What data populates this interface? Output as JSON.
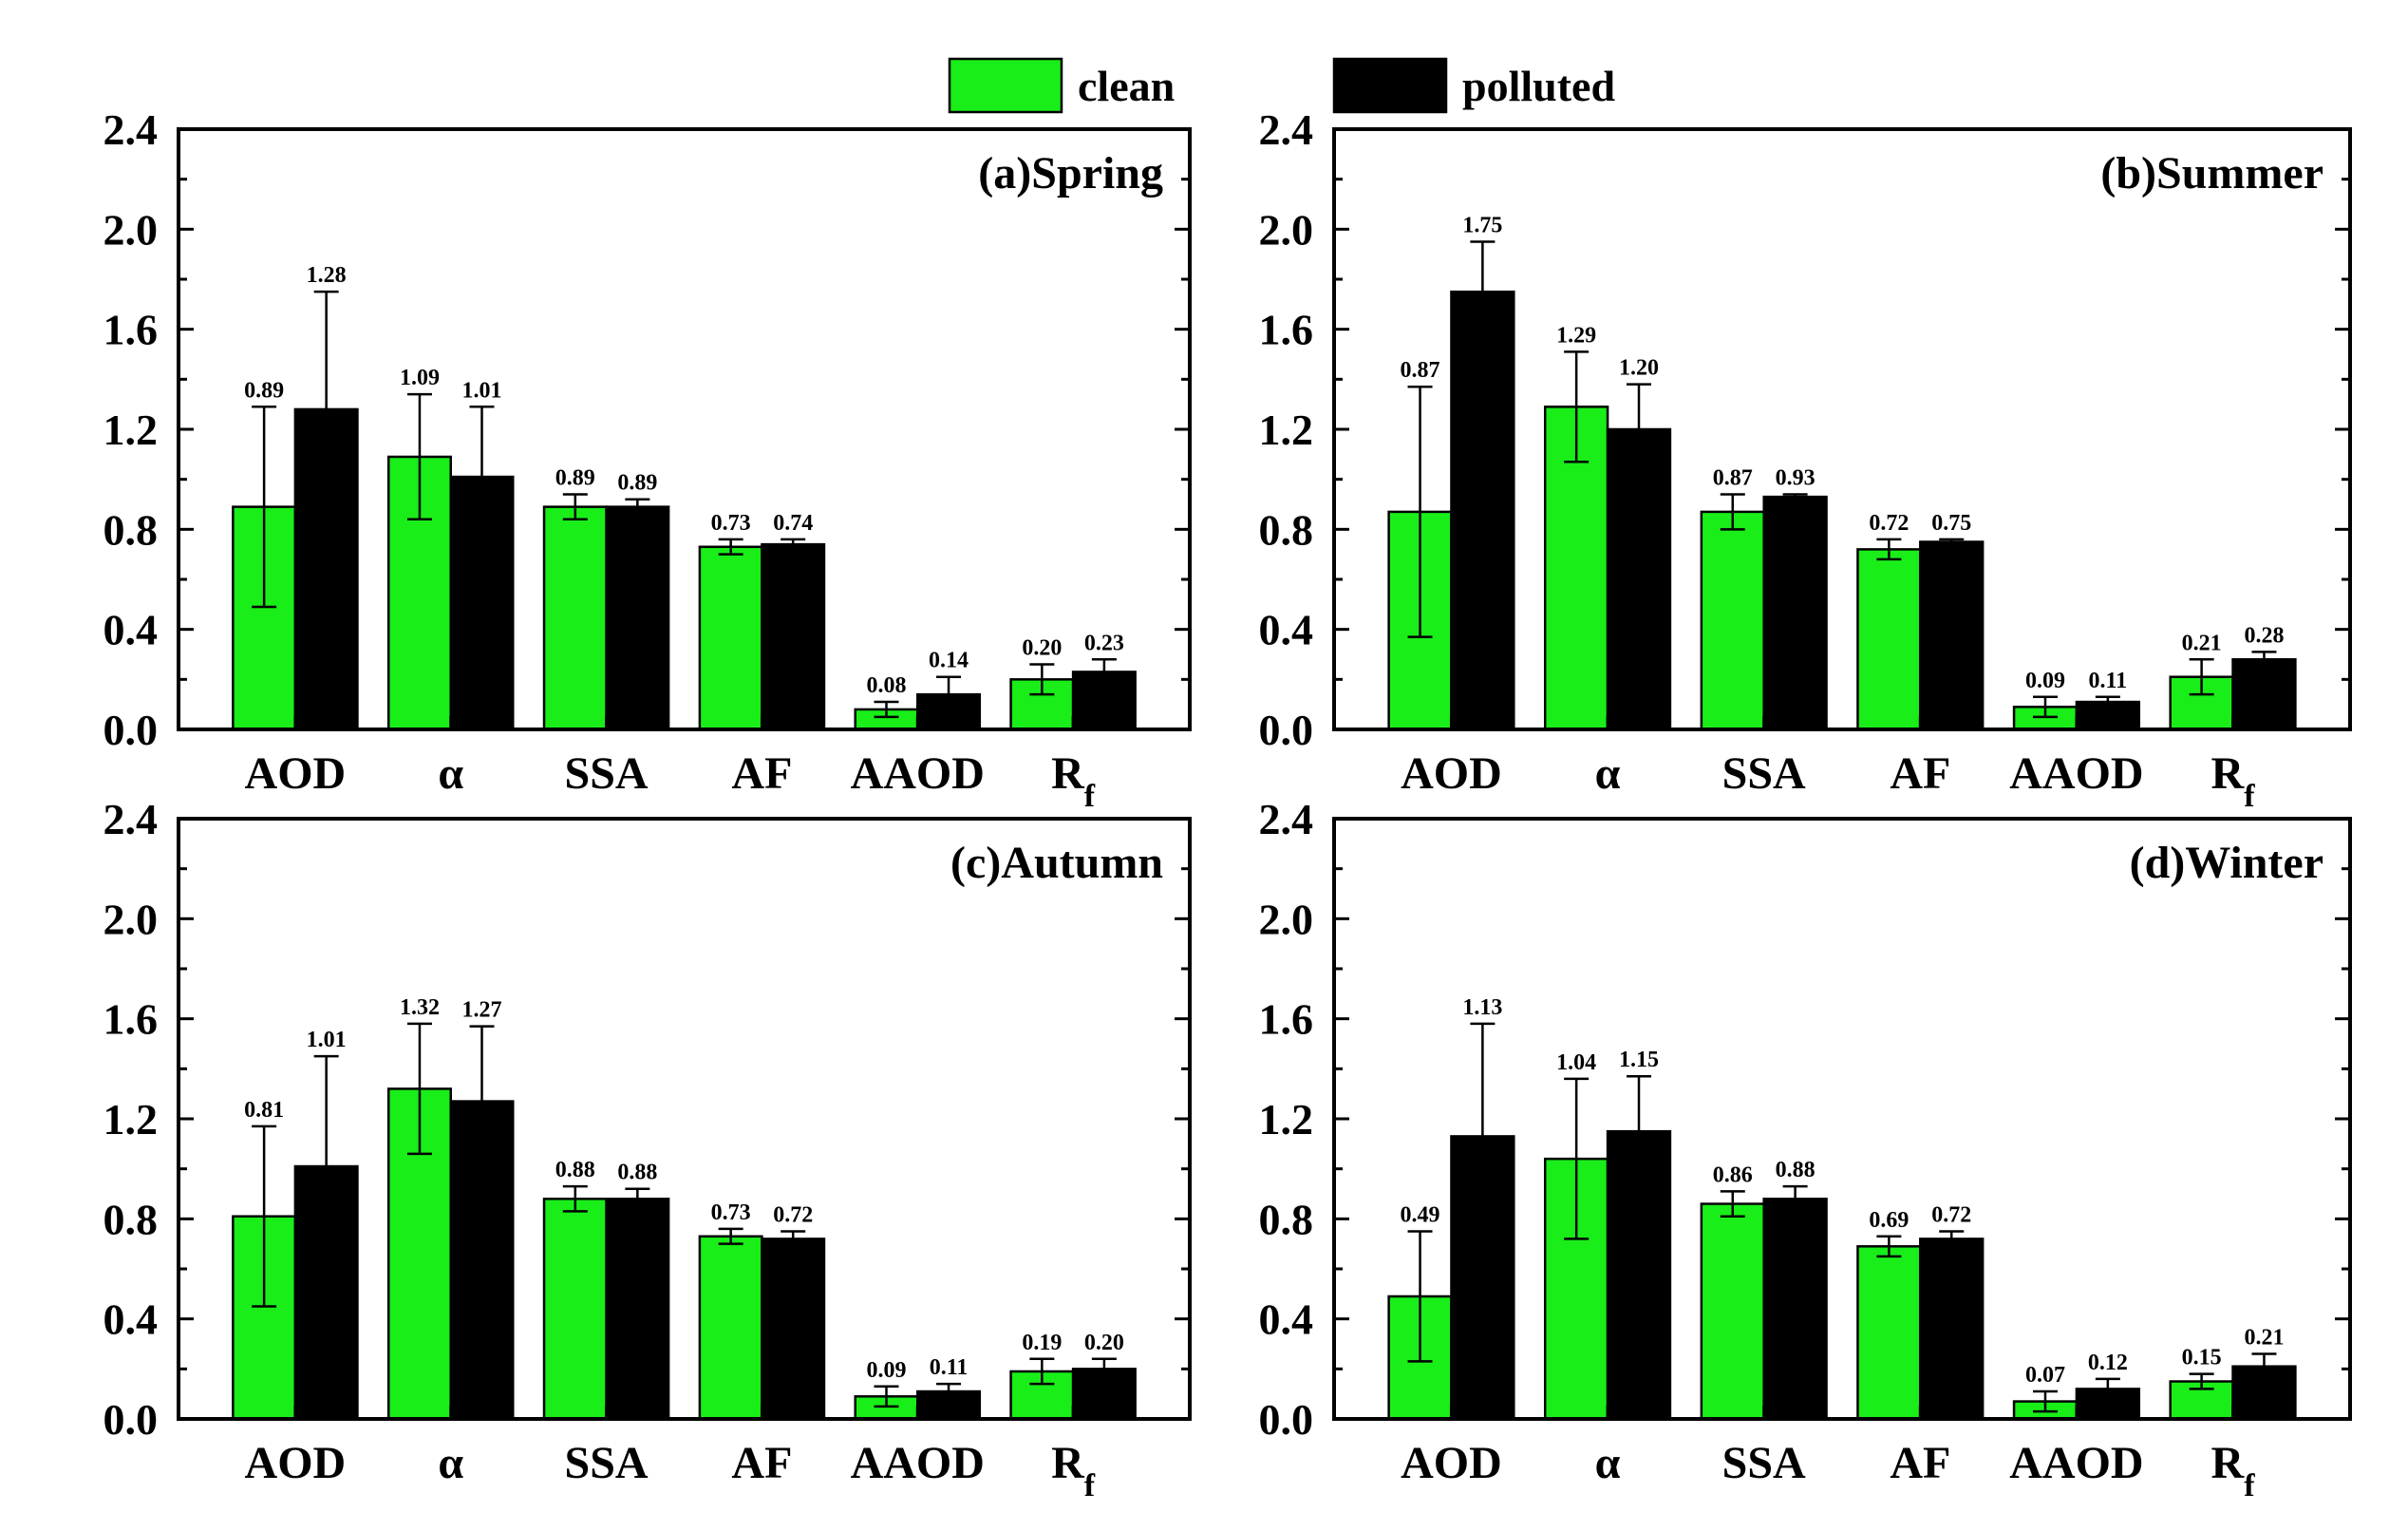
{
  "legend": {
    "clean": "clean",
    "polluted": "polluted"
  },
  "colors": {
    "clean": "#19ee19",
    "polluted": "#000000"
  },
  "chart_data": [
    {
      "type": "bar",
      "title": "(a)Spring",
      "categories": [
        "AOD",
        "α",
        "SSA",
        "AF",
        "AAOD",
        "Rf"
      ],
      "ylim": [
        0,
        2.4
      ],
      "yticks": [
        "0.0",
        "0.4",
        "0.8",
        "1.2",
        "1.6",
        "2.0",
        "2.4"
      ],
      "series": [
        {
          "name": "clean",
          "values": [
            0.89,
            1.09,
            0.89,
            0.73,
            0.08,
            0.2
          ],
          "labels": [
            "0.89",
            "1.09",
            "0.89",
            "0.73",
            "0.08",
            "0.20"
          ],
          "errors": [
            0.4,
            0.25,
            0.05,
            0.03,
            0.03,
            0.06
          ]
        },
        {
          "name": "polluted",
          "values": [
            1.28,
            1.01,
            0.89,
            0.74,
            0.14,
            0.23
          ],
          "labels": [
            "1.28",
            "1.01",
            "0.89",
            "0.74",
            "0.14",
            "0.23"
          ],
          "errors": [
            0.47,
            0.28,
            0.03,
            0.02,
            0.07,
            0.05
          ]
        }
      ]
    },
    {
      "type": "bar",
      "title": "(b)Summer",
      "categories": [
        "AOD",
        "α",
        "SSA",
        "AF",
        "AAOD",
        "Rf"
      ],
      "ylim": [
        0,
        2.4
      ],
      "yticks": [
        "0.0",
        "0.4",
        "0.8",
        "1.2",
        "1.6",
        "2.0",
        "2.4"
      ],
      "series": [
        {
          "name": "clean",
          "values": [
            0.87,
            1.29,
            0.87,
            0.72,
            0.09,
            0.21
          ],
          "labels": [
            "0.87",
            "1.29",
            "0.87",
            "0.72",
            "0.09",
            "0.21"
          ],
          "errors": [
            0.5,
            0.22,
            0.07,
            0.04,
            0.04,
            0.07
          ]
        },
        {
          "name": "polluted",
          "values": [
            1.75,
            1.2,
            0.93,
            0.75,
            0.11,
            0.28
          ],
          "labels": [
            "1.75",
            "1.20",
            "0.93",
            "0.75",
            "0.11",
            "0.28"
          ],
          "errors": [
            0.2,
            0.18,
            0.01,
            0.01,
            0.02,
            0.03
          ]
        }
      ]
    },
    {
      "type": "bar",
      "title": "(c)Autumn",
      "categories": [
        "AOD",
        "α",
        "SSA",
        "AF",
        "AAOD",
        "Rf"
      ],
      "ylim": [
        0,
        2.4
      ],
      "yticks": [
        "0.0",
        "0.4",
        "0.8",
        "1.2",
        "1.6",
        "2.0",
        "2.4"
      ],
      "series": [
        {
          "name": "clean",
          "values": [
            0.81,
            1.32,
            0.88,
            0.73,
            0.09,
            0.19
          ],
          "labels": [
            "0.81",
            "1.32",
            "0.88",
            "0.73",
            "0.09",
            "0.19"
          ],
          "errors": [
            0.36,
            0.26,
            0.05,
            0.03,
            0.04,
            0.05
          ]
        },
        {
          "name": "polluted",
          "values": [
            1.01,
            1.27,
            0.88,
            0.72,
            0.11,
            0.2
          ],
          "labels": [
            "1.01",
            "1.27",
            "0.88",
            "0.72",
            "0.11",
            "0.20"
          ],
          "errors": [
            0.44,
            0.3,
            0.04,
            0.03,
            0.03,
            0.04
          ]
        }
      ]
    },
    {
      "type": "bar",
      "title": "(d)Winter",
      "categories": [
        "AOD",
        "α",
        "SSA",
        "AF",
        "AAOD",
        "Rf"
      ],
      "ylim": [
        0,
        2.4
      ],
      "yticks": [
        "0.0",
        "0.4",
        "0.8",
        "1.2",
        "1.6",
        "2.0",
        "2.4"
      ],
      "series": [
        {
          "name": "clean",
          "values": [
            0.49,
            1.04,
            0.86,
            0.69,
            0.07,
            0.15
          ],
          "labels": [
            "0.49",
            "1.04",
            "0.86",
            "0.69",
            "0.07",
            "0.15"
          ],
          "errors": [
            0.26,
            0.32,
            0.05,
            0.04,
            0.04,
            0.03
          ]
        },
        {
          "name": "polluted",
          "values": [
            1.13,
            1.15,
            0.88,
            0.72,
            0.12,
            0.21
          ],
          "labels": [
            "1.13",
            "1.15",
            "0.88",
            "0.72",
            "0.12",
            "0.21"
          ],
          "errors": [
            0.45,
            0.22,
            0.05,
            0.03,
            0.04,
            0.05
          ]
        }
      ]
    }
  ]
}
